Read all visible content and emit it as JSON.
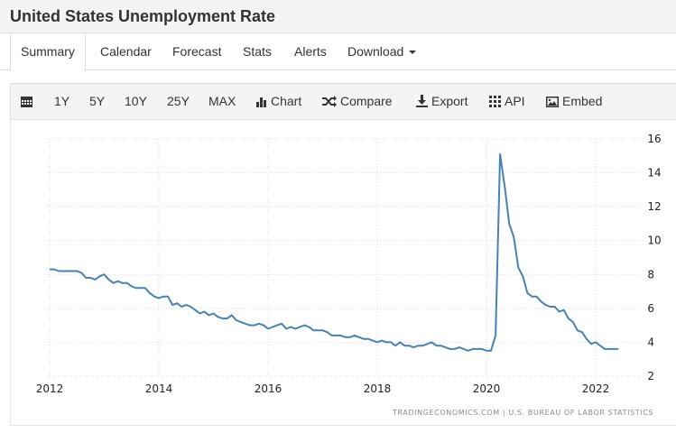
{
  "title": "United States Unemployment Rate",
  "tabs": [
    "Summary",
    "Calendar",
    "Forecast",
    "Stats",
    "Alerts",
    "Download"
  ],
  "toolbar": {
    "ranges": [
      "1Y",
      "5Y",
      "10Y",
      "25Y",
      "MAX"
    ],
    "chart": "Chart",
    "compare": "Compare",
    "export": "Export",
    "api": "API",
    "embed": "Embed"
  },
  "source": "TRADINGECONOMICS.COM  |  U.S. BUREAU OF LABOR STATISTICS",
  "chart_data": {
    "type": "line",
    "title": "United States Unemployment Rate",
    "x_start": 2012,
    "x_step_months": 1,
    "xticks": [
      "2012",
      "2014",
      "2016",
      "2018",
      "2020",
      "2022"
    ],
    "yticks": [
      "2",
      "4",
      "6",
      "8",
      "10",
      "12",
      "14",
      "16"
    ],
    "ylim": [
      2,
      16
    ],
    "xlim": [
      2011.95,
      2022.7
    ],
    "color": "#4682b4",
    "values": [
      8.3,
      8.3,
      8.2,
      8.2,
      8.2,
      8.2,
      8.2,
      8.1,
      7.8,
      7.8,
      7.7,
      7.9,
      8.0,
      7.7,
      7.5,
      7.6,
      7.5,
      7.5,
      7.3,
      7.2,
      7.2,
      7.2,
      6.9,
      6.7,
      6.6,
      6.7,
      6.7,
      6.2,
      6.3,
      6.1,
      6.2,
      6.1,
      5.9,
      5.7,
      5.8,
      5.6,
      5.7,
      5.5,
      5.4,
      5.4,
      5.6,
      5.3,
      5.2,
      5.1,
      5.0,
      5.0,
      5.1,
      5.0,
      4.8,
      4.9,
      5.0,
      5.1,
      4.8,
      4.9,
      4.8,
      4.9,
      5.0,
      4.9,
      4.7,
      4.7,
      4.7,
      4.6,
      4.4,
      4.4,
      4.4,
      4.3,
      4.3,
      4.4,
      4.3,
      4.2,
      4.2,
      4.1,
      4.0,
      4.1,
      4.0,
      4.0,
      3.8,
      4.0,
      3.8,
      3.8,
      3.7,
      3.8,
      3.8,
      3.9,
      4.0,
      3.8,
      3.8,
      3.7,
      3.6,
      3.6,
      3.7,
      3.6,
      3.5,
      3.6,
      3.6,
      3.6,
      3.5,
      3.5,
      4.4,
      15.1,
      13.2,
      11.0,
      10.2,
      8.4,
      7.9,
      6.9,
      6.7,
      6.7,
      6.4,
      6.2,
      6.1,
      6.1,
      5.8,
      5.9,
      5.4,
      5.2,
      4.7,
      4.6,
      4.2,
      3.9,
      4.0,
      3.8,
      3.6,
      3.6,
      3.6,
      3.6
    ]
  }
}
